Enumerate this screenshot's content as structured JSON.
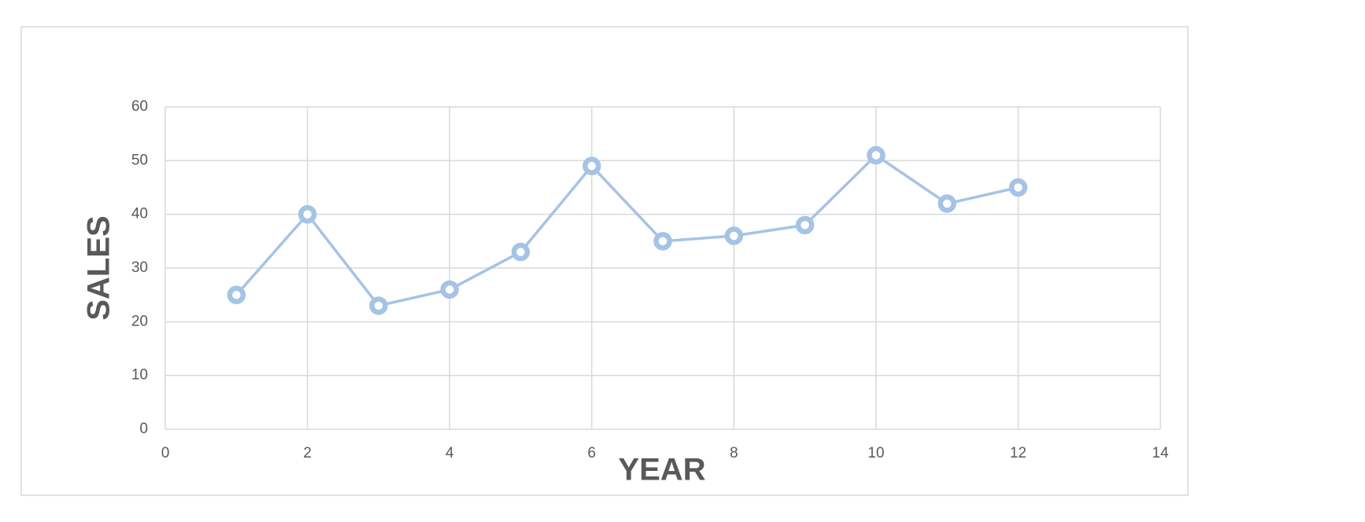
{
  "chart_data": {
    "type": "line",
    "x_label": "YEAR",
    "y_label": "SALES",
    "x": [
      1,
      2,
      3,
      4,
      5,
      6,
      7,
      8,
      9,
      10,
      11,
      12
    ],
    "series": [
      {
        "color": "#a5c3e5",
        "values": [
          25,
          40,
          23,
          26,
          33,
          49,
          35,
          36,
          38,
          51,
          42,
          45
        ]
      }
    ],
    "xlim": [
      0,
      14
    ],
    "xticks": [
      0,
      2,
      4,
      6,
      8,
      10,
      12,
      14
    ],
    "ylim": [
      0,
      60
    ],
    "yticks": [
      0,
      10,
      20,
      30,
      40,
      50,
      60
    ],
    "grid": true
  }
}
